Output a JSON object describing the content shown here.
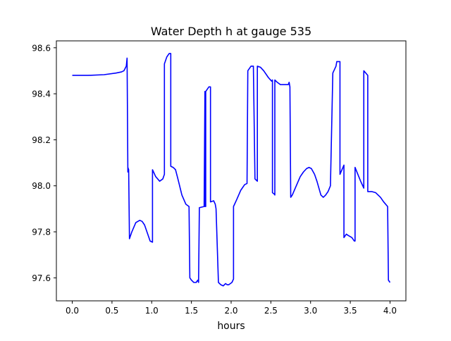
{
  "chart_data": {
    "type": "line",
    "title": "Water Depth h at gauge 535",
    "xlabel": "hours",
    "ylabel": "",
    "xlim": [
      -0.2,
      4.2
    ],
    "ylim": [
      97.5,
      98.63
    ],
    "grid": false,
    "xticks": [
      0.0,
      0.5,
      1.0,
      1.5,
      2.0,
      2.5,
      3.0,
      3.5,
      4.0
    ],
    "xtick_labels": [
      "0.0",
      "0.5",
      "1.0",
      "1.5",
      "2.0",
      "2.5",
      "3.0",
      "3.5",
      "4.0"
    ],
    "yticks": [
      97.6,
      97.8,
      98.0,
      98.2,
      98.4,
      98.6
    ],
    "ytick_labels": [
      "97.6",
      "97.8",
      "98.0",
      "98.2",
      "98.4",
      "98.6"
    ],
    "series": [
      {
        "color": "#0000ff",
        "x": [
          0.0,
          0.2,
          0.4,
          0.55,
          0.62,
          0.65,
          0.68,
          0.69,
          0.7,
          0.7,
          0.71,
          0.72,
          0.72,
          0.75,
          0.8,
          0.85,
          0.88,
          0.91,
          0.94,
          0.98,
          1.01,
          1.01,
          1.05,
          1.1,
          1.14,
          1.16,
          1.16,
          1.19,
          1.22,
          1.24,
          1.24,
          1.27,
          1.3,
          1.33,
          1.38,
          1.43,
          1.47,
          1.48,
          1.5,
          1.53,
          1.56,
          1.58,
          1.59,
          1.6,
          1.66,
          1.67,
          1.67,
          1.68,
          1.68,
          1.72,
          1.74,
          1.74,
          1.78,
          1.8,
          1.81,
          1.84,
          1.87,
          1.9,
          1.93,
          1.95,
          1.97,
          2.01,
          2.03,
          2.03,
          2.07,
          2.12,
          2.17,
          2.2,
          2.21,
          2.25,
          2.27,
          2.28,
          2.3,
          2.33,
          2.33,
          2.37,
          2.41,
          2.47,
          2.51,
          2.52,
          2.52,
          2.54,
          2.55,
          2.55,
          2.58,
          2.62,
          2.68,
          2.72,
          2.73,
          2.74,
          2.75,
          2.77,
          2.82,
          2.87,
          2.91,
          2.95,
          2.98,
          3.01,
          3.05,
          3.08,
          3.13,
          3.16,
          3.19,
          3.22,
          3.25,
          3.28,
          3.32,
          3.33,
          3.37,
          3.37,
          3.42,
          3.42,
          3.43,
          3.45,
          3.47,
          3.52,
          3.55,
          3.56,
          3.56,
          3.63,
          3.67,
          3.67,
          3.72,
          3.72,
          3.77,
          3.82,
          3.85,
          3.88,
          3.92,
          3.97,
          3.98,
          4.0
        ],
        "y": [
          98.48,
          98.48,
          98.483,
          98.49,
          98.495,
          98.5,
          98.52,
          98.555,
          98.06,
          98.08,
          98.07,
          97.77,
          97.77,
          97.8,
          97.84,
          97.85,
          97.845,
          97.83,
          97.8,
          97.76,
          97.755,
          98.07,
          98.04,
          98.02,
          98.03,
          98.05,
          98.53,
          98.56,
          98.575,
          98.575,
          98.085,
          98.08,
          98.07,
          98.03,
          97.96,
          97.92,
          97.91,
          97.6,
          97.59,
          97.58,
          97.58,
          97.59,
          97.58,
          97.905,
          97.91,
          98.41,
          97.91,
          97.91,
          98.41,
          98.43,
          98.43,
          97.93,
          97.935,
          97.92,
          97.9,
          97.58,
          97.57,
          97.565,
          97.575,
          97.57,
          97.57,
          97.58,
          97.595,
          97.91,
          97.94,
          97.98,
          98.005,
          98.01,
          98.5,
          98.52,
          98.52,
          98.52,
          98.03,
          98.02,
          98.52,
          98.515,
          98.5,
          98.47,
          98.455,
          98.46,
          97.97,
          97.965,
          97.96,
          98.46,
          98.45,
          98.44,
          98.44,
          98.44,
          98.45,
          98.43,
          97.95,
          97.96,
          98.0,
          98.04,
          98.06,
          98.075,
          98.08,
          98.075,
          98.05,
          98.02,
          97.96,
          97.95,
          97.96,
          97.975,
          98.0,
          98.49,
          98.52,
          98.54,
          98.54,
          98.05,
          98.09,
          97.775,
          97.78,
          97.79,
          97.785,
          97.775,
          97.76,
          97.76,
          98.08,
          98.02,
          97.99,
          98.5,
          98.48,
          97.975,
          97.975,
          97.97,
          97.96,
          97.95,
          97.93,
          97.91,
          97.59,
          97.58
        ]
      }
    ]
  }
}
